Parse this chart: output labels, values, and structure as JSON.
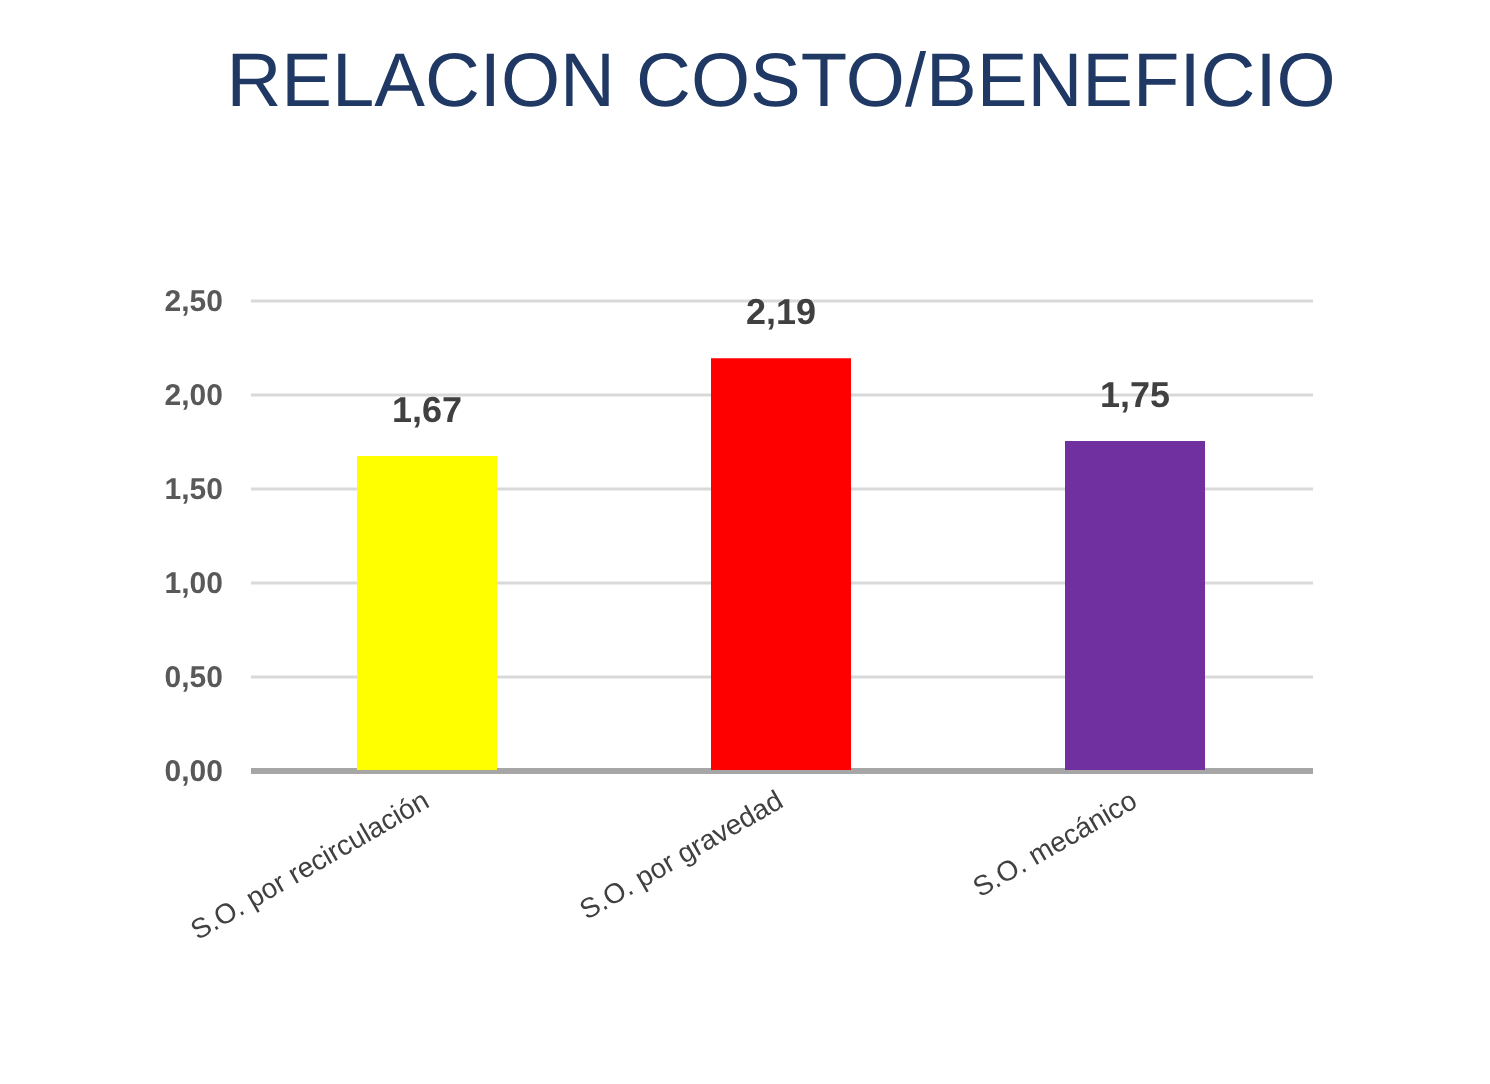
{
  "chart_data": {
    "type": "bar",
    "title": "RELACION COSTO/BENEFICIO",
    "categories": [
      "S.O. por recirculación",
      "S.O. por gravedad",
      "S.O. mecánico"
    ],
    "values": [
      1.67,
      2.19,
      1.75
    ],
    "colors": [
      "#ffff00",
      "#ff0000",
      "#7030a0"
    ],
    "value_labels": [
      "1,67",
      "2,19",
      "1,75"
    ],
    "ylim": [
      0,
      2.5
    ],
    "yticks": [
      {
        "value": 0,
        "label": "0,00"
      },
      {
        "value": 0.5,
        "label": "0,50"
      },
      {
        "value": 1,
        "label": "1,00"
      },
      {
        "value": 1.5,
        "label": "1,50"
      },
      {
        "value": 2,
        "label": "2,00"
      },
      {
        "value": 2.5,
        "label": "2,50"
      }
    ],
    "grid": "y"
  }
}
